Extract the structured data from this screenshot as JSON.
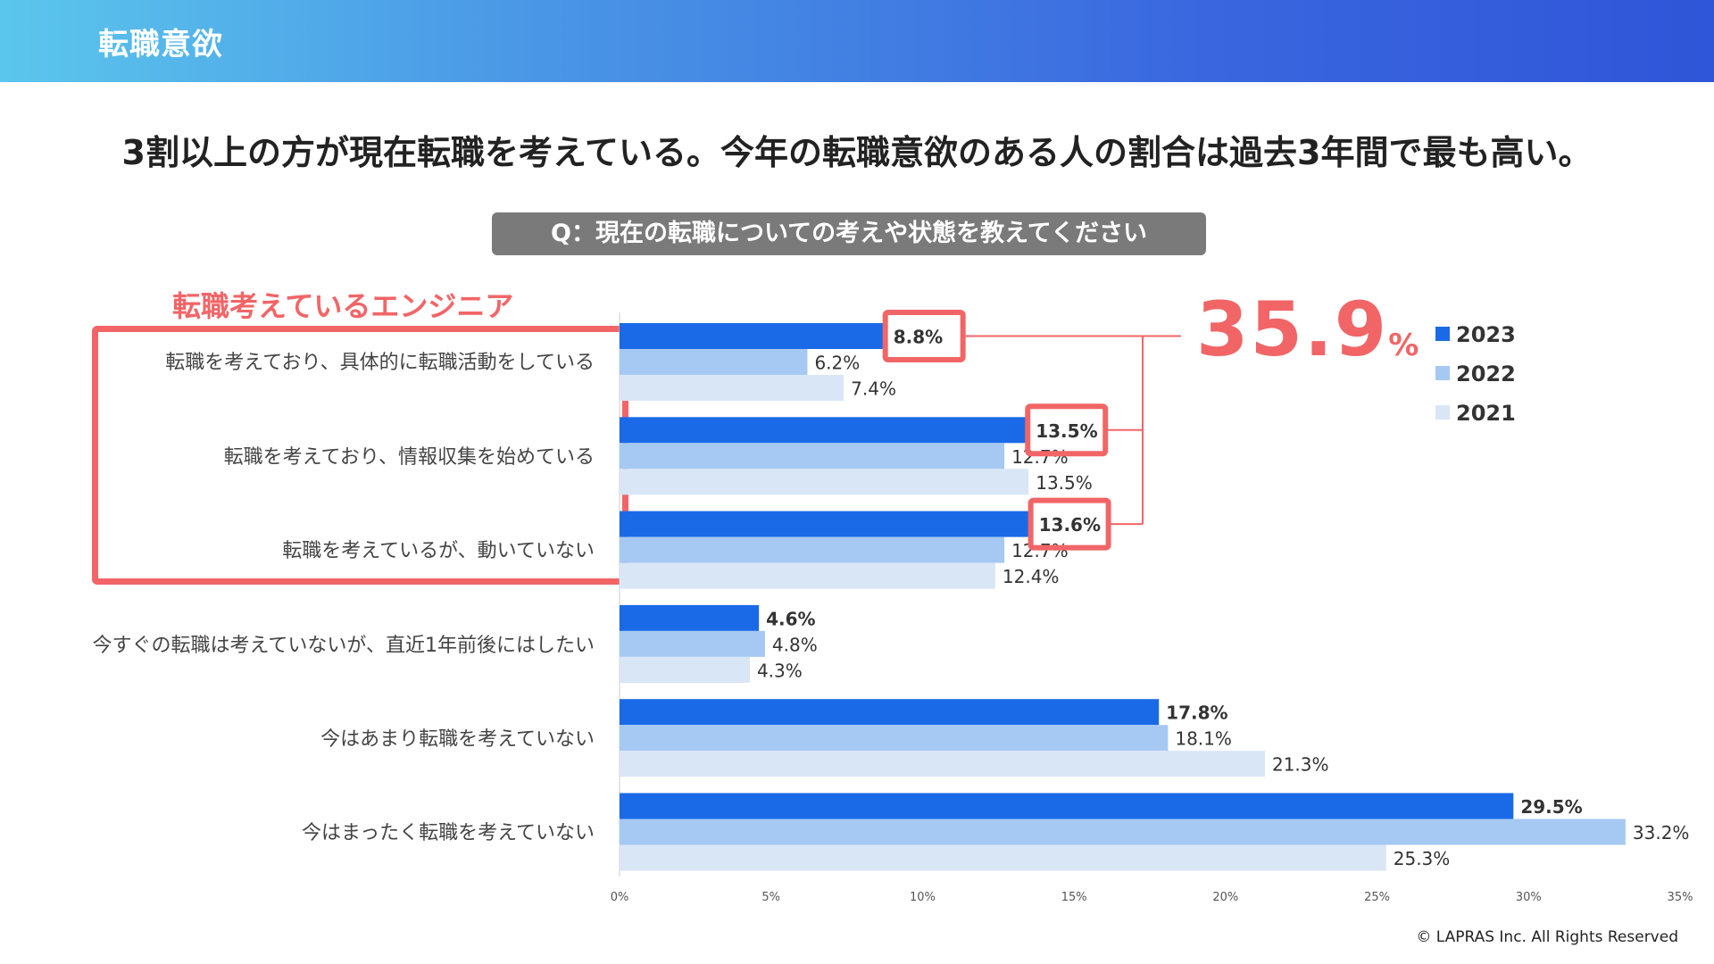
{
  "header": {
    "title": "転職意欲"
  },
  "headline": "3割以上の方が現在転職を考えている。今年の転職意欲のある人の割合は過去3年間で最も高い。",
  "question": "Q：現在の転職についての考えや状態を教えてください",
  "engineer_label": "転職考えているエンジニア",
  "total": {
    "value": "35.9",
    "unit": "%"
  },
  "colors": {
    "2023": "#1a6ae8",
    "2022": "#a6c9f3",
    "2021": "#d9e6f6",
    "highlight": "#f26567"
  },
  "chart_data": {
    "type": "bar",
    "orientation": "horizontal",
    "categories": [
      "転職を考えており、具体的に転職活動をしている",
      "転職を考えており、情報収集を始めている",
      "転職を考えているが、動いていない",
      "今すぐの転職は考えていないが、直近1年前後にはしたい",
      "今はあまり転職を考えていない",
      "今はまったく転職を考えていない"
    ],
    "series": [
      {
        "name": "2023",
        "values": [
          8.8,
          13.5,
          13.6,
          4.6,
          17.8,
          29.5
        ],
        "labels": [
          "8.8%",
          "13.5%",
          "13.6%",
          "4.6%",
          "17.8%",
          "29.5%"
        ]
      },
      {
        "name": "2022",
        "values": [
          6.2,
          12.7,
          12.7,
          4.8,
          18.1,
          33.2
        ],
        "labels": [
          "6.2%",
          "12.7%",
          "12.7%",
          "4.8%",
          "18.1%",
          "33.2%"
        ]
      },
      {
        "name": "2021",
        "values": [
          7.4,
          13.5,
          12.4,
          4.3,
          21.3,
          25.3
        ],
        "labels": [
          "7.4%",
          "13.5%",
          "12.4%",
          "4.3%",
          "21.3%",
          "25.3%"
        ]
      }
    ],
    "xlim": [
      0,
      35
    ],
    "xticks": [
      0,
      5,
      10,
      15,
      20,
      25,
      30,
      35
    ],
    "xtick_labels": [
      "0%",
      "5%",
      "10%",
      "15%",
      "20%",
      "25%",
      "30%",
      "35%"
    ],
    "highlighted_categories": [
      0,
      1,
      2
    ],
    "legend": [
      "2023",
      "2022",
      "2021"
    ],
    "legend_position": "top-right"
  },
  "copyright": "© LAPRAS Inc. All Rights Reserved"
}
